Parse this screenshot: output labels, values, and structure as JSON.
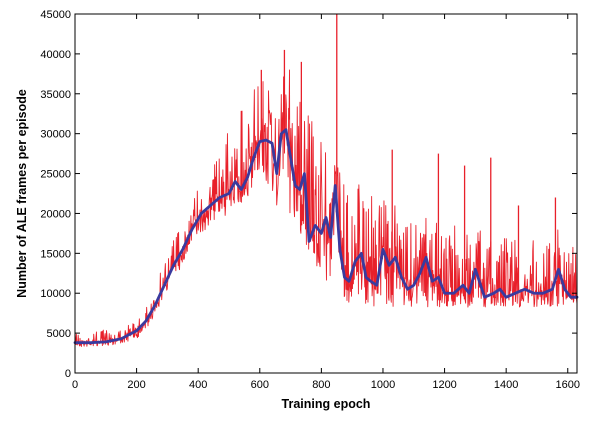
{
  "chart_data": {
    "type": "line",
    "title": "",
    "xlabel": "Training epoch",
    "ylabel": "Number of ALE frames per episode",
    "xlim": [
      0,
      1630
    ],
    "ylim": [
      0,
      45000
    ],
    "xticks": [
      0,
      200,
      400,
      600,
      800,
      1000,
      1200,
      1400,
      1600
    ],
    "yticks": [
      0,
      5000,
      10000,
      15000,
      20000,
      25000,
      30000,
      35000,
      40000,
      45000
    ],
    "grid": false,
    "legend": "none",
    "colors": {
      "raw": "#e8202a",
      "smoothed": "#3a3a9e"
    },
    "series": [
      {
        "role": "raw",
        "envelope": {
          "x": [
            0,
            50,
            100,
            150,
            200,
            250,
            300,
            350,
            400,
            450,
            500,
            550,
            600,
            650,
            700,
            750,
            800,
            850,
            900,
            950,
            1000,
            1050,
            1100,
            1150,
            1200,
            1250,
            1300,
            1350,
            1400,
            1450,
            1500,
            1550,
            1600,
            1630
          ],
          "low": [
            3200,
            3300,
            3400,
            3700,
            4300,
            6200,
            10500,
            13500,
            17000,
            19000,
            20000,
            21500,
            23000,
            21000,
            19500,
            14000,
            12000,
            10000,
            8500,
            8500,
            8200,
            8200,
            8200,
            8200,
            8200,
            8200,
            8200,
            8200,
            8200,
            8200,
            8200,
            8200,
            8200,
            8200
          ],
          "high": [
            5500,
            5200,
            5500,
            5800,
            6500,
            9500,
            15500,
            19500,
            24000,
            27500,
            30500,
            34000,
            37000,
            40000,
            38500,
            33000,
            30000,
            27000,
            25000,
            23000,
            22000,
            21000,
            20500,
            19500,
            19000,
            19000,
            18500,
            18500,
            18000,
            18000,
            18000,
            18000,
            18000,
            17000
          ]
        },
        "spikes": [
          {
            "x": 850,
            "y": 45000
          },
          {
            "x": 605,
            "y": 38000
          },
          {
            "x": 680,
            "y": 40500
          },
          {
            "x": 735,
            "y": 39000
          },
          {
            "x": 1030,
            "y": 28000
          },
          {
            "x": 1180,
            "y": 27500
          },
          {
            "x": 1265,
            "y": 26000
          },
          {
            "x": 1350,
            "y": 27000
          },
          {
            "x": 1560,
            "y": 22000
          },
          {
            "x": 1440,
            "y": 21000
          }
        ]
      },
      {
        "role": "smoothed",
        "x": [
          0,
          50,
          100,
          150,
          200,
          230,
          260,
          290,
          320,
          350,
          380,
          410,
          440,
          470,
          500,
          520,
          540,
          560,
          580,
          600,
          620,
          640,
          655,
          670,
          685,
          700,
          715,
          730,
          745,
          760,
          780,
          800,
          815,
          830,
          845,
          860,
          875,
          890,
          910,
          930,
          945,
          960,
          980,
          1000,
          1020,
          1040,
          1060,
          1080,
          1100,
          1120,
          1140,
          1160,
          1180,
          1200,
          1230,
          1260,
          1280,
          1300,
          1330,
          1360,
          1380,
          1400,
          1430,
          1460,
          1490,
          1520,
          1550,
          1570,
          1590,
          1610,
          1630
        ],
        "y": [
          3800,
          3800,
          3900,
          4300,
          5300,
          6500,
          8500,
          11000,
          13500,
          15500,
          18000,
          20000,
          21000,
          22000,
          22500,
          24000,
          23000,
          24500,
          27000,
          29000,
          29200,
          28800,
          25000,
          30000,
          30500,
          27000,
          23500,
          23000,
          25000,
          16500,
          18500,
          17500,
          19500,
          17000,
          23500,
          15500,
          12000,
          11500,
          14000,
          15000,
          12000,
          11500,
          11000,
          15500,
          13500,
          14500,
          12000,
          10500,
          11000,
          12500,
          14500,
          11500,
          12000,
          10000,
          10000,
          11000,
          10000,
          13000,
          9500,
          10000,
          10500,
          9500,
          10000,
          10500,
          10000,
          10000,
          10500,
          13000,
          10500,
          9500,
          9500
        ]
      }
    ]
  }
}
